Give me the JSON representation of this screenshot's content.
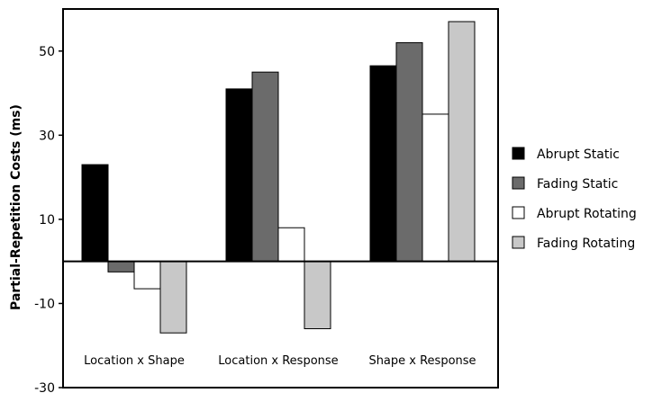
{
  "chart_data": {
    "type": "bar",
    "title": "",
    "xlabel": "",
    "ylabel": "Partial-Repetition Costs (ms)",
    "ylim": [
      -30,
      60
    ],
    "yticks": [
      -30,
      -10,
      10,
      30,
      50
    ],
    "grid": false,
    "legend_position": "right",
    "categories": [
      "Location x Shape",
      "Location x Response",
      "Shape x Response"
    ],
    "series": [
      {
        "name": "Abrupt Static",
        "color": "#000000",
        "values": [
          23,
          41,
          46.5
        ]
      },
      {
        "name": "Fading Static",
        "color": "#6b6b6b",
        "values": [
          -2.5,
          45,
          52
        ]
      },
      {
        "name": "Abrupt Rotating",
        "color": "#ffffff",
        "values": [
          -6.5,
          8,
          35
        ]
      },
      {
        "name": "Fading Rotating",
        "color": "#c8c8c8",
        "values": [
          -17,
          -16,
          57
        ]
      }
    ]
  }
}
